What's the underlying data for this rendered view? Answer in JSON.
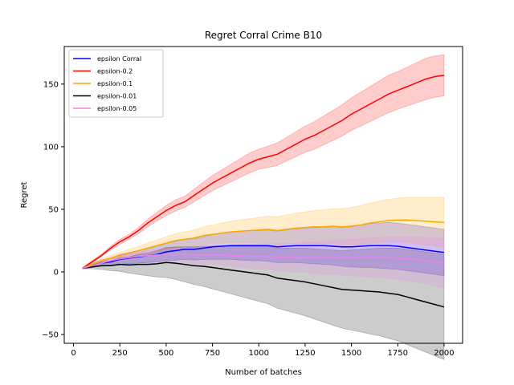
{
  "chart_data": {
    "type": "line",
    "title": "Regret Corral Crime B10",
    "xlabel": "Number of batches",
    "ylabel": "Regret",
    "xlim": [
      -50,
      2100
    ],
    "ylim": [
      -57,
      180
    ],
    "xticks": [
      0,
      250,
      500,
      750,
      1000,
      1250,
      1500,
      1750,
      2000
    ],
    "yticks": [
      -50,
      0,
      50,
      100,
      150
    ],
    "grid": false,
    "legend_position": "top-left",
    "x": [
      50,
      100,
      150,
      200,
      250,
      300,
      350,
      400,
      450,
      500,
      550,
      600,
      650,
      700,
      750,
      800,
      850,
      900,
      950,
      1000,
      1050,
      1100,
      1150,
      1200,
      1250,
      1300,
      1350,
      1400,
      1450,
      1500,
      1550,
      1600,
      1650,
      1700,
      1750,
      1800,
      1850,
      1900,
      1950,
      2000
    ],
    "series": [
      {
        "name": "epsilon Corral",
        "color": "#0000ff",
        "values": [
          3,
          5,
          7,
          8,
          10,
          11,
          12,
          13,
          14,
          16,
          17,
          18,
          18,
          19,
          20,
          20.5,
          21,
          21,
          21,
          21,
          21,
          20,
          20.5,
          21,
          21,
          21,
          21,
          20.5,
          20,
          20,
          20.5,
          21,
          21,
          21,
          20.5,
          19.5,
          18.5,
          17.5,
          16.5,
          15.5
        ],
        "lower": [
          2.5,
          3.5,
          4.5,
          5,
          6,
          6.5,
          7,
          7.5,
          8,
          9,
          9.5,
          10,
          9.5,
          10,
          10,
          10,
          10,
          9.5,
          9,
          9,
          8.5,
          7.5,
          7.5,
          7.5,
          7,
          6.5,
          6,
          5.5,
          4.5,
          4,
          3.5,
          3.5,
          3,
          2.5,
          2,
          1,
          0,
          -1,
          -2,
          -3
        ],
        "upper": [
          3.5,
          6.5,
          9.5,
          11,
          14,
          15.5,
          17,
          18.5,
          20,
          23,
          24.5,
          26,
          26.5,
          28,
          30,
          31,
          32,
          32.5,
          33,
          33,
          33.5,
          32.5,
          33.5,
          34.5,
          35,
          35.5,
          36,
          35.5,
          35.5,
          36,
          37.5,
          38.5,
          39,
          39.5,
          39,
          38,
          37,
          36,
          35,
          34
        ]
      },
      {
        "name": "epsilon-0.2",
        "color": "#ff0000",
        "values": [
          3,
          8,
          13,
          19,
          24,
          28,
          33,
          39,
          44,
          49,
          53,
          56,
          61,
          66,
          71,
          75,
          79,
          83,
          87,
          90,
          92,
          94,
          98,
          102,
          106,
          109,
          113,
          117,
          121,
          126,
          130,
          134,
          138,
          142,
          145,
          148,
          151,
          154,
          156,
          157
        ],
        "lower": [
          2.5,
          7,
          12,
          17.5,
          22,
          26,
          30.5,
          36,
          40.5,
          45,
          48.5,
          51.5,
          56,
          60.5,
          65,
          68.5,
          72,
          75.5,
          79,
          82,
          83.5,
          85,
          88.5,
          92,
          95.5,
          98,
          101.5,
          105,
          108.5,
          113,
          116.5,
          120,
          123.5,
          127,
          130,
          132.5,
          135,
          137.5,
          139.5,
          140.5
        ],
        "upper": [
          3.5,
          9,
          14,
          20.5,
          26,
          30,
          35.5,
          42,
          47.5,
          53,
          57.5,
          60.5,
          66,
          71.5,
          77,
          81.5,
          86,
          90.5,
          95,
          98,
          100.5,
          103,
          107.5,
          112,
          116.5,
          120,
          124.5,
          129,
          133.5,
          139,
          143.5,
          148,
          152.5,
          157,
          160,
          163.5,
          167,
          170.5,
          172.5,
          173.5
        ]
      },
      {
        "name": "epsilon-0.1",
        "color": "#ffa500",
        "values": [
          3,
          6,
          9,
          11,
          13,
          15,
          17,
          19,
          21,
          23,
          25,
          26,
          27,
          29,
          30,
          31,
          32,
          32.5,
          33,
          33.5,
          34,
          33,
          34,
          35,
          35.5,
          36,
          36,
          36.5,
          36,
          36.5,
          37.5,
          39,
          40,
          41,
          41.5,
          41.5,
          41,
          40.5,
          40,
          39.5
        ],
        "lower": [
          2.5,
          5,
          7.5,
          9,
          10.5,
          12,
          13.5,
          15,
          16.5,
          18,
          19.5,
          20,
          20.5,
          22,
          22.5,
          23,
          23.5,
          23.5,
          23.5,
          23.5,
          23.5,
          22,
          22.5,
          23,
          23,
          23,
          22.5,
          22.5,
          21.5,
          21.5,
          22,
          23,
          23.5,
          24,
          24,
          23.5,
          22.5,
          21.5,
          20.5,
          19.5
        ],
        "upper": [
          3.5,
          7,
          10.5,
          13,
          15.5,
          18,
          20.5,
          23,
          25.5,
          28,
          30.5,
          32,
          33.5,
          36,
          37.5,
          39,
          40.5,
          41.5,
          42.5,
          43.5,
          44.5,
          44,
          45.5,
          47,
          48,
          49,
          49.5,
          50.5,
          50.5,
          51.5,
          53,
          55,
          56.5,
          58,
          59,
          59.5,
          59.5,
          59.5,
          59.5,
          59.5
        ]
      },
      {
        "name": "epsilon-0.01",
        "color": "#000000",
        "values": [
          3,
          4,
          5,
          5,
          6,
          5.5,
          6,
          6,
          6.5,
          7.5,
          7,
          6,
          5,
          4.5,
          3.5,
          2.5,
          1.5,
          0.5,
          -0.5,
          -1.5,
          -2.5,
          -5,
          -6,
          -7,
          -8,
          -9.5,
          -11,
          -12.5,
          -14,
          -14.5,
          -15,
          -15.5,
          -16,
          -17,
          -18,
          -20,
          -22,
          -24,
          -26,
          -28
        ],
        "lower": [
          2.5,
          2.5,
          2,
          1,
          0.5,
          -1,
          -2,
          -3,
          -4,
          -4.5,
          -6,
          -8,
          -10,
          -11.5,
          -13.5,
          -15.5,
          -17.5,
          -19.5,
          -21.5,
          -23.5,
          -25.5,
          -29,
          -31,
          -33,
          -35,
          -37.5,
          -40,
          -42.5,
          -45,
          -46.5,
          -48,
          -49.5,
          -51,
          -53,
          -55,
          -58,
          -61,
          -64,
          -67,
          -70
        ],
        "upper": [
          3.5,
          5.5,
          8,
          9,
          11.5,
          12,
          14,
          15,
          17,
          19.5,
          20,
          20,
          20,
          20.5,
          20.5,
          20.5,
          20.5,
          20.5,
          20.5,
          20.5,
          20.5,
          19,
          19,
          19,
          19,
          18.5,
          18,
          17.5,
          17,
          17.5,
          18,
          18.5,
          19,
          19,
          19,
          18,
          17,
          16,
          15,
          14
        ]
      },
      {
        "name": "epsilon-0.05",
        "color": "#ee82ee",
        "values": [
          3,
          5,
          7,
          9,
          10.5,
          11.5,
          12.5,
          13,
          13.5,
          14,
          14,
          14,
          13.5,
          13.5,
          13.5,
          13.5,
          13,
          13,
          12.5,
          12.5,
          12.5,
          12,
          11.5,
          11.5,
          11.5,
          11.5,
          11.5,
          11.5,
          11.5,
          11.5,
          11.5,
          11.5,
          11.5,
          11.5,
          11,
          10.5,
          10,
          9,
          8,
          7
        ],
        "lower": [
          2.5,
          4,
          5.5,
          7,
          8,
          8.5,
          9,
          9,
          9,
          9,
          8.5,
          8,
          7,
          6.5,
          6,
          5.5,
          4.5,
          4,
          3,
          2.5,
          2,
          1,
          0.5,
          0,
          -0.5,
          -1,
          -1.5,
          -2,
          -2.5,
          -3,
          -3.5,
          -4,
          -4.5,
          -5,
          -6,
          -7,
          -8,
          -9.5,
          -11,
          -12.5
        ],
        "upper": [
          3.5,
          6,
          8.5,
          11,
          13,
          14.5,
          16,
          17,
          18,
          19,
          19.5,
          20,
          20,
          20.5,
          21,
          21.5,
          21.5,
          22,
          22,
          22.5,
          23,
          23,
          22.5,
          23,
          23.5,
          24,
          24.5,
          25,
          25.5,
          26,
          26.5,
          27,
          27.5,
          28,
          28,
          28,
          28,
          27.5,
          27,
          26.5
        ]
      }
    ]
  }
}
